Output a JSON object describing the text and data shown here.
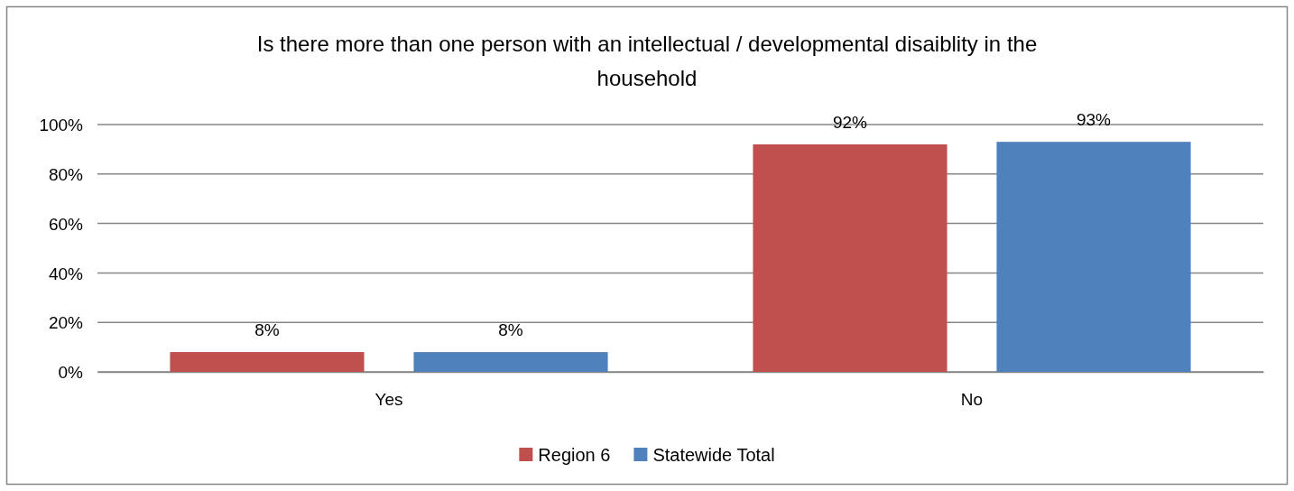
{
  "chart_data": {
    "type": "bar",
    "title": "Is there more than one person with an intellectual / developmental disaiblity in the household",
    "categories": [
      "Yes",
      "No"
    ],
    "series": [
      {
        "name": "Region 6",
        "color": "#c0504d",
        "values": [
          8,
          92
        ],
        "value_labels": [
          "8%",
          "92%"
        ]
      },
      {
        "name": "Statewide Total",
        "color": "#4f81bd",
        "values": [
          8,
          93
        ],
        "value_labels": [
          "8%",
          "93%"
        ]
      }
    ],
    "ylim": [
      0,
      100
    ],
    "yticks": [
      {
        "value": 0,
        "label": "0%"
      },
      {
        "value": 20,
        "label": "20%"
      },
      {
        "value": 40,
        "label": "40%"
      },
      {
        "value": 60,
        "label": "60%"
      },
      {
        "value": 80,
        "label": "80%"
      },
      {
        "value": 100,
        "label": "100%"
      }
    ],
    "grid": "y",
    "legend": "bottom"
  }
}
